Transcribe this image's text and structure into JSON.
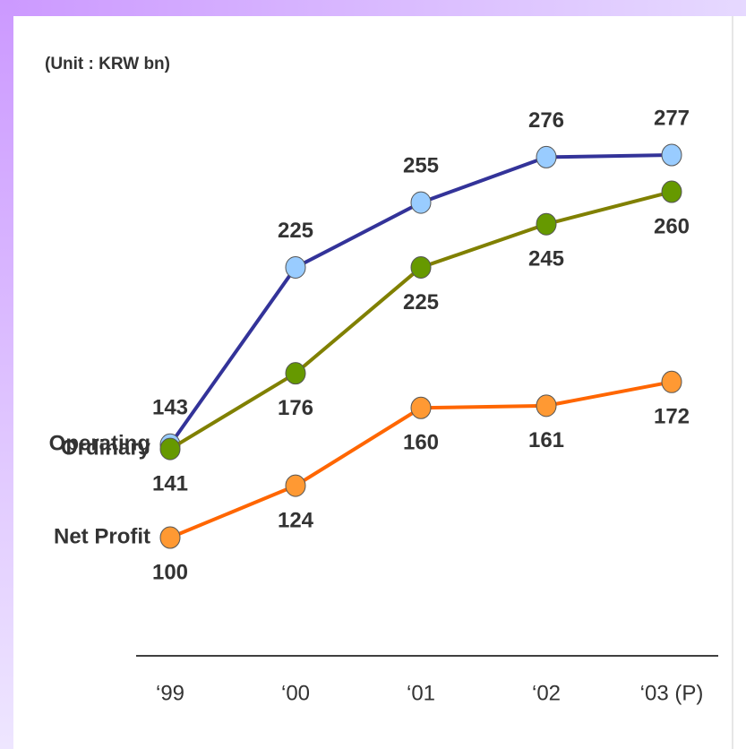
{
  "chart_data": {
    "type": "line",
    "subtitle": "(Unit : KRW bn)",
    "categories": [
      "‘99",
      "‘00",
      "‘01",
      "‘02",
      "‘03 (P)"
    ],
    "series": [
      {
        "name": "Operating",
        "color": "#333399",
        "marker_color": "#99ccff",
        "values": [
          143,
          225,
          255,
          276,
          277
        ]
      },
      {
        "name": "Ordinary",
        "color": "#808000",
        "marker_color": "#669900",
        "values": [
          141,
          176,
          225,
          245,
          260
        ]
      },
      {
        "name": "Net Profit",
        "color": "#ff6600",
        "marker_color": "#ff9933",
        "values": [
          100,
          124,
          160,
          161,
          172
        ]
      }
    ]
  }
}
